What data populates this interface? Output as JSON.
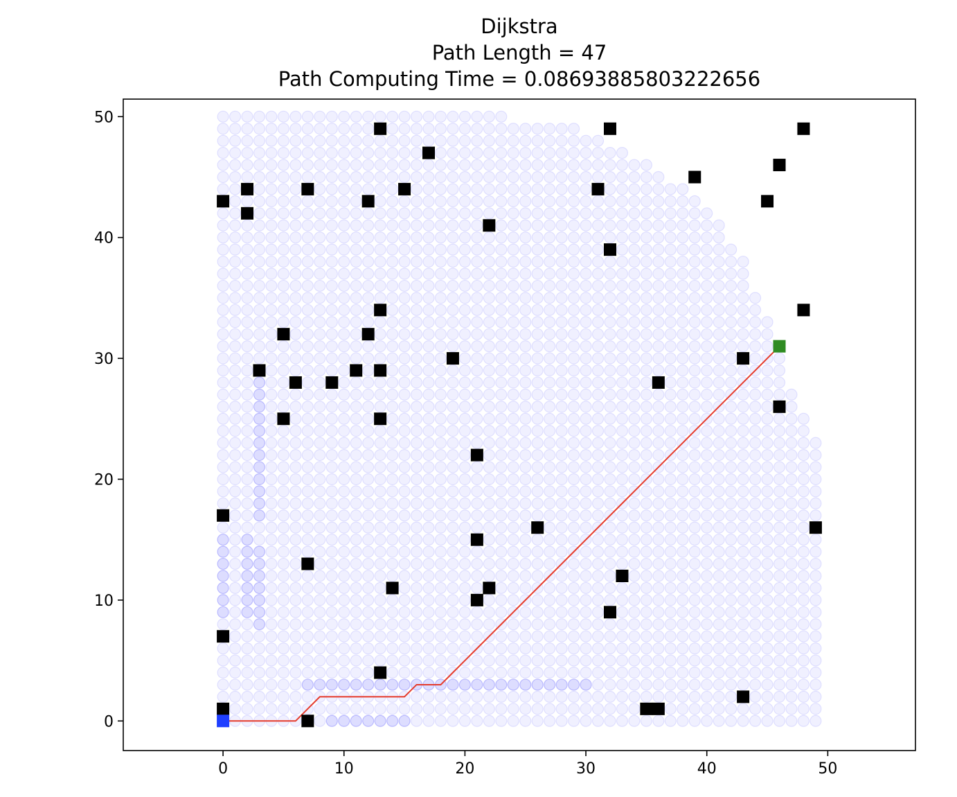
{
  "chart_data": {
    "type": "scatter",
    "title": "Dijkstra",
    "subtitle_lines": [
      "Path Length = 47",
      "Path Computing Time = 0.08693885803222656"
    ],
    "xlabel": "",
    "ylabel": "",
    "xlim": [
      -8.25,
      57.25
    ],
    "ylim": [
      -2.45,
      51.45
    ],
    "xticks": [
      0,
      10,
      20,
      30,
      40,
      50
    ],
    "yticks": [
      0,
      10,
      20,
      30,
      40,
      50
    ],
    "grid": false,
    "start": [
      0,
      0
    ],
    "goal": [
      46,
      31
    ],
    "explored_row_max_x": [
      49,
      49,
      49,
      49,
      49,
      49,
      49,
      49,
      49,
      49,
      49,
      49,
      49,
      49,
      49,
      49,
      49,
      49,
      49,
      49,
      49,
      49,
      49,
      49,
      48,
      48,
      47,
      47,
      46,
      46,
      46,
      45,
      45,
      45,
      44,
      44,
      43,
      43,
      43,
      42,
      41,
      41,
      40,
      39,
      38,
      36,
      35,
      33,
      31,
      29,
      23
    ],
    "obstacles": [
      [
        0,
        1
      ],
      [
        0,
        7
      ],
      [
        0,
        17
      ],
      [
        0,
        43
      ],
      [
        2,
        42
      ],
      [
        2,
        44
      ],
      [
        3,
        29
      ],
      [
        5,
        25
      ],
      [
        5,
        32
      ],
      [
        6,
        28
      ],
      [
        7,
        0
      ],
      [
        7,
        13
      ],
      [
        7,
        44
      ],
      [
        9,
        28
      ],
      [
        11,
        29
      ],
      [
        12,
        32
      ],
      [
        12,
        43
      ],
      [
        13,
        4
      ],
      [
        13,
        25
      ],
      [
        13,
        29
      ],
      [
        13,
        34
      ],
      [
        13,
        49
      ],
      [
        14,
        11
      ],
      [
        15,
        44
      ],
      [
        17,
        47
      ],
      [
        19,
        30
      ],
      [
        21,
        10
      ],
      [
        21,
        15
      ],
      [
        21,
        22
      ],
      [
        22,
        11
      ],
      [
        22,
        41
      ],
      [
        26,
        16
      ],
      [
        31,
        44
      ],
      [
        32,
        9
      ],
      [
        32,
        39
      ],
      [
        32,
        49
      ],
      [
        33,
        12
      ],
      [
        35,
        1
      ],
      [
        36,
        1
      ],
      [
        36,
        28
      ],
      [
        39,
        45
      ],
      [
        43,
        2
      ],
      [
        43,
        30
      ],
      [
        45,
        43
      ],
      [
        46,
        26
      ],
      [
        46,
        46
      ],
      [
        48,
        34
      ],
      [
        48,
        49
      ],
      [
        49,
        16
      ]
    ],
    "revisited": [
      [
        0,
        9
      ],
      [
        0,
        10
      ],
      [
        0,
        11
      ],
      [
        0,
        12
      ],
      [
        0,
        13
      ],
      [
        0,
        14
      ],
      [
        0,
        15
      ],
      [
        2,
        9
      ],
      [
        2,
        10
      ],
      [
        2,
        11
      ],
      [
        2,
        12
      ],
      [
        2,
        13
      ],
      [
        2,
        14
      ],
      [
        2,
        15
      ],
      [
        3,
        8
      ],
      [
        3,
        9
      ],
      [
        3,
        10
      ],
      [
        3,
        11
      ],
      [
        3,
        12
      ],
      [
        3,
        13
      ],
      [
        3,
        14
      ],
      [
        3,
        17
      ],
      [
        3,
        18
      ],
      [
        3,
        19
      ],
      [
        3,
        20
      ],
      [
        3,
        21
      ],
      [
        3,
        22
      ],
      [
        3,
        23
      ],
      [
        3,
        24
      ],
      [
        3,
        25
      ],
      [
        3,
        26
      ],
      [
        3,
        27
      ],
      [
        3,
        28
      ],
      [
        7,
        3
      ],
      [
        8,
        3
      ],
      [
        9,
        3
      ],
      [
        10,
        3
      ],
      [
        11,
        3
      ],
      [
        12,
        3
      ],
      [
        13,
        3
      ],
      [
        14,
        3
      ],
      [
        15,
        3
      ],
      [
        16,
        3
      ],
      [
        17,
        3
      ],
      [
        18,
        3
      ],
      [
        19,
        3
      ],
      [
        20,
        3
      ],
      [
        21,
        3
      ],
      [
        22,
        3
      ],
      [
        23,
        3
      ],
      [
        24,
        3
      ],
      [
        25,
        3
      ],
      [
        26,
        3
      ],
      [
        27,
        3
      ],
      [
        28,
        3
      ],
      [
        29,
        3
      ],
      [
        30,
        3
      ],
      [
        9,
        0
      ],
      [
        10,
        0
      ],
      [
        11,
        0
      ],
      [
        12,
        0
      ],
      [
        13,
        0
      ],
      [
        14,
        0
      ],
      [
        15,
        0
      ]
    ],
    "path": [
      [
        0,
        0
      ],
      [
        1,
        0
      ],
      [
        2,
        0
      ],
      [
        3,
        0
      ],
      [
        4,
        0
      ],
      [
        5,
        0
      ],
      [
        6,
        0
      ],
      [
        7,
        1
      ],
      [
        8,
        2
      ],
      [
        9,
        2
      ],
      [
        10,
        2
      ],
      [
        11,
        2
      ],
      [
        12,
        2
      ],
      [
        13,
        2
      ],
      [
        14,
        2
      ],
      [
        15,
        2
      ],
      [
        16,
        3
      ],
      [
        17,
        3
      ],
      [
        18,
        3
      ],
      [
        19,
        4
      ],
      [
        20,
        5
      ],
      [
        21,
        6
      ],
      [
        22,
        7
      ],
      [
        23,
        8
      ],
      [
        24,
        9
      ],
      [
        25,
        10
      ],
      [
        26,
        11
      ],
      [
        27,
        12
      ],
      [
        28,
        13
      ],
      [
        29,
        14
      ],
      [
        30,
        15
      ],
      [
        31,
        16
      ],
      [
        32,
        17
      ],
      [
        33,
        18
      ],
      [
        34,
        19
      ],
      [
        35,
        20
      ],
      [
        36,
        21
      ],
      [
        37,
        22
      ],
      [
        38,
        23
      ],
      [
        39,
        24
      ],
      [
        40,
        25
      ],
      [
        41,
        26
      ],
      [
        42,
        27
      ],
      [
        43,
        28
      ],
      [
        44,
        29
      ],
      [
        45,
        30
      ],
      [
        46,
        31
      ]
    ],
    "colors": {
      "explored": "#0000ff",
      "obstacle": "#000000",
      "start": "#1f3fff",
      "goal": "#2e8b22",
      "path": "#e53b2c"
    }
  }
}
